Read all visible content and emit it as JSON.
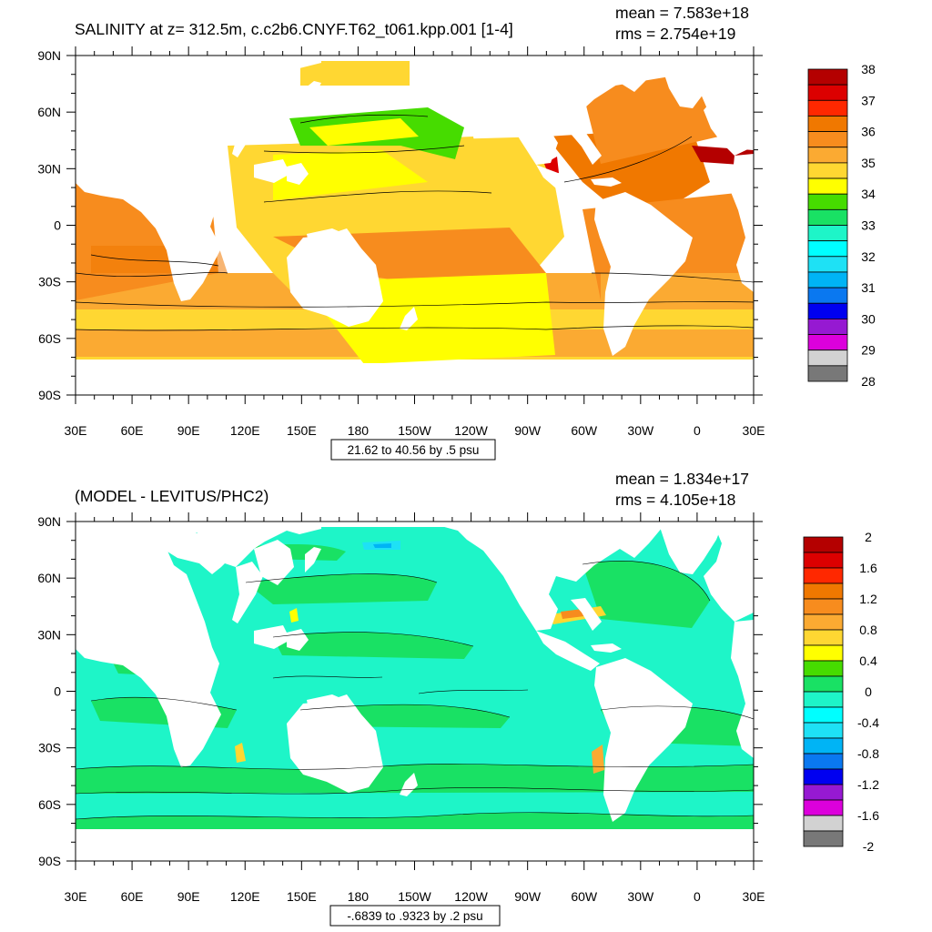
{
  "chart_data": [
    {
      "type": "heatmap",
      "title": "SALINITY at z= 312.5m, c.c2b6.CNYF.T62_t061.kpp.001 [1-4]",
      "stats": {
        "mean_text": "mean = 7.583e+18",
        "rms_text": "rms = 2.754e+19"
      },
      "contour_info": "21.62 to 40.56 by .5 psu",
      "x_ticks": [
        "30E",
        "60E",
        "90E",
        "120E",
        "150E",
        "180",
        "150W",
        "120W",
        "90W",
        "60W",
        "30W",
        "0",
        "30E"
      ],
      "y_ticks": [
        "90N",
        "60N",
        "30N",
        "0",
        "30S",
        "60S",
        "90S"
      ],
      "colorbar": {
        "labels": [
          "38",
          "37",
          "36",
          "35",
          "34",
          "33",
          "32",
          "31",
          "30",
          "29",
          "28"
        ],
        "colors": [
          "#b40000",
          "#dc0000",
          "#ff2800",
          "#f07800",
          "#f78c1e",
          "#fbaa32",
          "#ffd732",
          "#ffff00",
          "#46dc00",
          "#19e164",
          "#1ef5c8",
          "#00ffff",
          "#1ee1f5",
          "#00b4f5",
          "#0a78f0",
          "#0000f0",
          "#9619d2",
          "#dc00dc",
          "#d2d2d2",
          "#787878"
        ]
      }
    },
    {
      "type": "heatmap",
      "title": "(MODEL - LEVITUS/PHC2)",
      "stats": {
        "mean_text": "mean = 1.834e+17",
        "rms_text": "rms = 4.105e+18"
      },
      "contour_info": "-.6839 to .9323 by .2 psu",
      "x_ticks": [
        "30E",
        "60E",
        "90E",
        "120E",
        "150E",
        "180",
        "150W",
        "120W",
        "90W",
        "60W",
        "30W",
        "0",
        "30E"
      ],
      "y_ticks": [
        "90N",
        "60N",
        "30N",
        "0",
        "30S",
        "60S",
        "90S"
      ],
      "colorbar": {
        "labels": [
          "2",
          "1.6",
          "1.2",
          "0.8",
          "0.4",
          "0",
          "-0.4",
          "-0.8",
          "-1.2",
          "-1.6",
          "-2"
        ],
        "colors": [
          "#b40000",
          "#dc0000",
          "#ff2800",
          "#f07800",
          "#f78c1e",
          "#fbaa32",
          "#ffd732",
          "#ffff00",
          "#46dc00",
          "#19e164",
          "#1ef5c8",
          "#00ffff",
          "#1ee1f5",
          "#00b4f5",
          "#0a78f0",
          "#0000f0",
          "#9619d2",
          "#dc00dc",
          "#d2d2d2",
          "#787878"
        ]
      }
    }
  ]
}
